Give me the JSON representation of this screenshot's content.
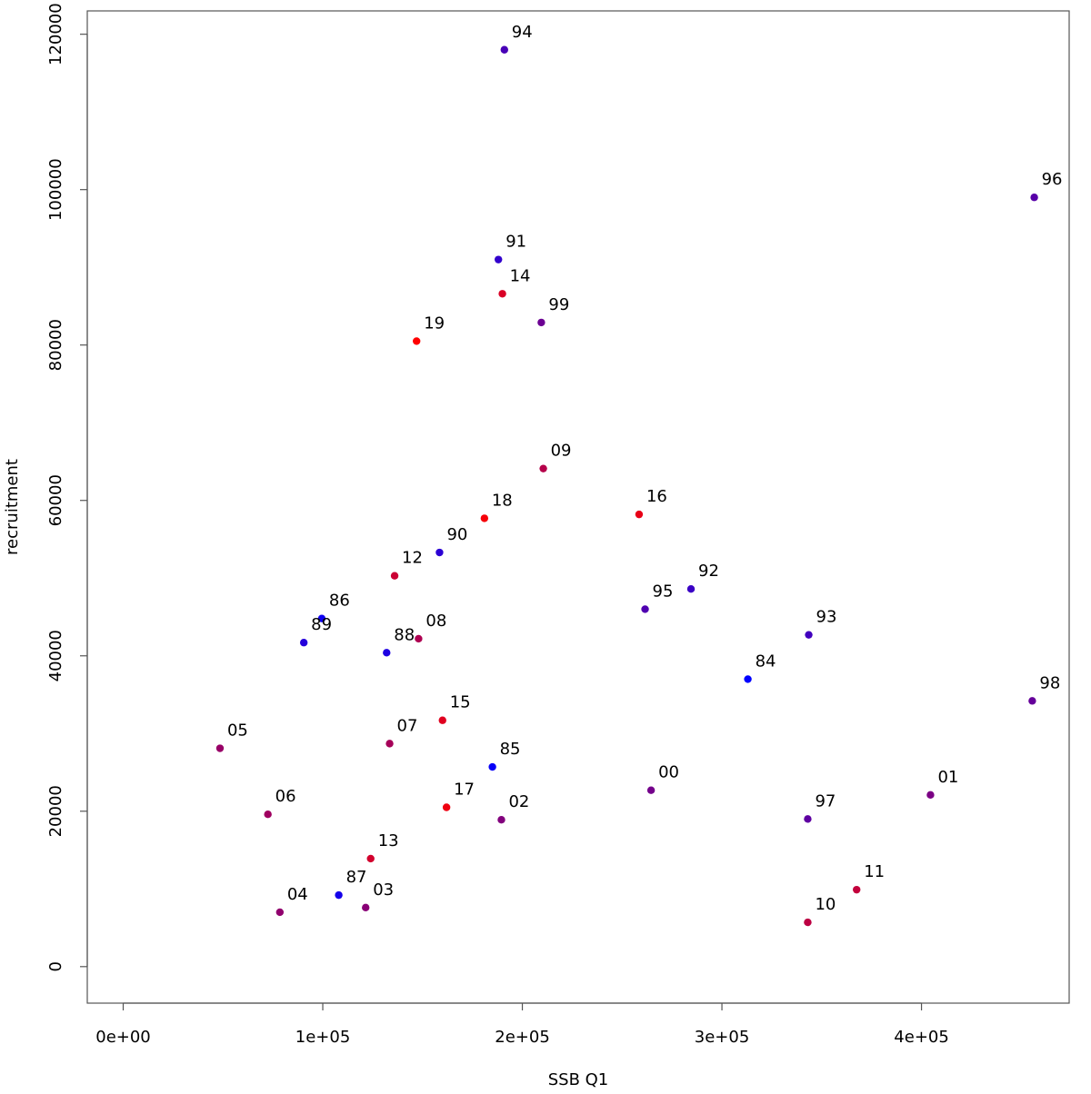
{
  "chart_data": {
    "type": "scatter",
    "xlabel": "SSB Q1",
    "ylabel": "recruitment",
    "xlim": [
      -18000,
      474000
    ],
    "ylim": [
      -4700,
      123000
    ],
    "x_ticks": [
      {
        "value": 0,
        "label": "0e+00"
      },
      {
        "value": 100000,
        "label": "1e+05"
      },
      {
        "value": 200000,
        "label": "2e+05"
      },
      {
        "value": 300000,
        "label": "3e+05"
      },
      {
        "value": 400000,
        "label": "4e+05"
      }
    ],
    "y_ticks": [
      {
        "value": 0,
        "label": "0"
      },
      {
        "value": 20000,
        "label": "20000"
      },
      {
        "value": 40000,
        "label": "40000"
      },
      {
        "value": 60000,
        "label": "60000"
      },
      {
        "value": 80000,
        "label": "80000"
      },
      {
        "value": 100000,
        "label": "100000"
      },
      {
        "value": 120000,
        "label": "120000"
      }
    ],
    "grid": false,
    "point_color_scale": "blue (1984) to red (2019) by year",
    "points": [
      {
        "label": "84",
        "x": 313000,
        "y": 37000,
        "color": "#0000ff"
      },
      {
        "label": "85",
        "x": 185000,
        "y": 25700,
        "color": "#0700f8"
      },
      {
        "label": "86",
        "x": 99500,
        "y": 44800,
        "color": "#0e00f1"
      },
      {
        "label": "87",
        "x": 108000,
        "y": 9200,
        "color": "#1500ea"
      },
      {
        "label": "88",
        "x": 132000,
        "y": 40400,
        "color": "#1d00e2"
      },
      {
        "label": "89",
        "x": 90500,
        "y": 41700,
        "color": "#2400db"
      },
      {
        "label": "90",
        "x": 158500,
        "y": 53300,
        "color": "#2b00d4"
      },
      {
        "label": "91",
        "x": 188000,
        "y": 91000,
        "color": "#3200cd"
      },
      {
        "label": "92",
        "x": 284500,
        "y": 48600,
        "color": "#3a00c5"
      },
      {
        "label": "93",
        "x": 343500,
        "y": 42700,
        "color": "#4100be"
      },
      {
        "label": "94",
        "x": 191000,
        "y": 118000,
        "color": "#4800b7"
      },
      {
        "label": "95",
        "x": 261500,
        "y": 46000,
        "color": "#4f00b0"
      },
      {
        "label": "96",
        "x": 456500,
        "y": 99000,
        "color": "#5700a8"
      },
      {
        "label": "97",
        "x": 343000,
        "y": 19000,
        "color": "#5e00a1"
      },
      {
        "label": "98",
        "x": 455500,
        "y": 34200,
        "color": "#65009a"
      },
      {
        "label": "99",
        "x": 209500,
        "y": 82900,
        "color": "#6c0093"
      },
      {
        "label": "00",
        "x": 264500,
        "y": 22700,
        "color": "#74008b"
      },
      {
        "label": "01",
        "x": 404500,
        "y": 22100,
        "color": "#7b0084"
      },
      {
        "label": "02",
        "x": 189500,
        "y": 18900,
        "color": "#82007d"
      },
      {
        "label": "03",
        "x": 121500,
        "y": 7600,
        "color": "#890076"
      },
      {
        "label": "04",
        "x": 78500,
        "y": 7000,
        "color": "#91006e"
      },
      {
        "label": "05",
        "x": 48500,
        "y": 28100,
        "color": "#980067"
      },
      {
        "label": "06",
        "x": 72500,
        "y": 19600,
        "color": "#9f0060"
      },
      {
        "label": "07",
        "x": 133500,
        "y": 28700,
        "color": "#a60059"
      },
      {
        "label": "08",
        "x": 148000,
        "y": 42200,
        "color": "#ae0051"
      },
      {
        "label": "09",
        "x": 210500,
        "y": 64100,
        "color": "#b5004a"
      },
      {
        "label": "10",
        "x": 343000,
        "y": 5700,
        "color": "#bc0043"
      },
      {
        "label": "11",
        "x": 367500,
        "y": 9900,
        "color": "#c3003c"
      },
      {
        "label": "12",
        "x": 136000,
        "y": 50300,
        "color": "#cb0034"
      },
      {
        "label": "13",
        "x": 124000,
        "y": 13900,
        "color": "#d2002d"
      },
      {
        "label": "14",
        "x": 190000,
        "y": 86600,
        "color": "#d90026"
      },
      {
        "label": "15",
        "x": 160000,
        "y": 31700,
        "color": "#e0001f"
      },
      {
        "label": "16",
        "x": 258500,
        "y": 58200,
        "color": "#e80017"
      },
      {
        "label": "17",
        "x": 162000,
        "y": 20500,
        "color": "#ef0010"
      },
      {
        "label": "18",
        "x": 181000,
        "y": 57700,
        "color": "#f60009"
      },
      {
        "label": "19",
        "x": 147000,
        "y": 80500,
        "color": "#ff0000"
      }
    ]
  }
}
